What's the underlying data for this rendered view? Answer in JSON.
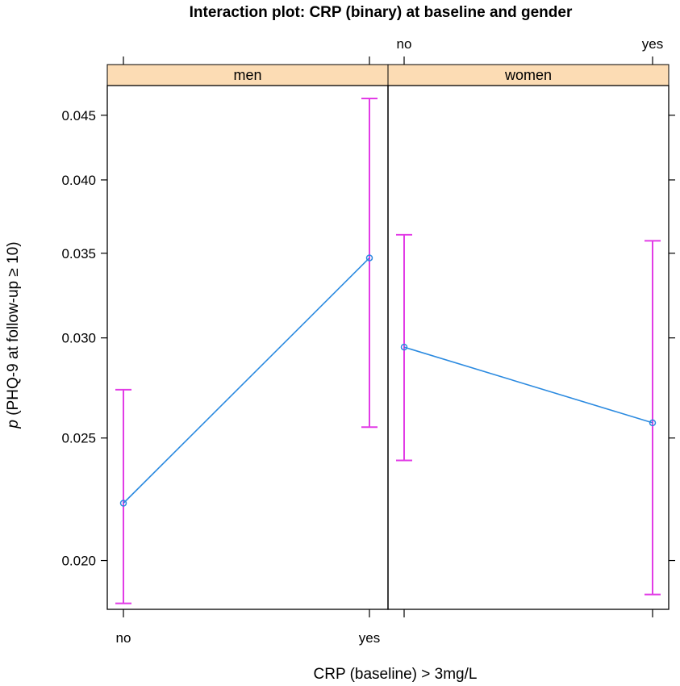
{
  "chart_data": {
    "type": "line",
    "title": "Interaction plot: CRP (binary) at baseline and gender",
    "xlabel": "CRP (baseline) > 3mg/L",
    "ylabel_italic": "p",
    "ylabel_rest": " (PHQ-9 at follow-up ≥ 10)",
    "categories": [
      "no",
      "yes"
    ],
    "y_ticks": [
      "0.020",
      "0.025",
      "0.030",
      "0.035",
      "0.040",
      "0.045"
    ],
    "y_scale": "log",
    "ylim": [
      0.0183,
      0.0475
    ],
    "panels": [
      {
        "name": "men",
        "values": [
          0.0222,
          0.0347
        ],
        "lower": [
          0.0185,
          0.0255
        ],
        "upper": [
          0.0273,
          0.0464
        ]
      },
      {
        "name": "women",
        "values": [
          0.0295,
          0.0257
        ],
        "lower": [
          0.024,
          0.0188
        ],
        "upper": [
          0.0362,
          0.0358
        ]
      }
    ],
    "colors": {
      "line": "#2b8ae0",
      "errorbar": "#e23ce6",
      "strip": "#fcdcb4",
      "axis": "#000000"
    }
  }
}
